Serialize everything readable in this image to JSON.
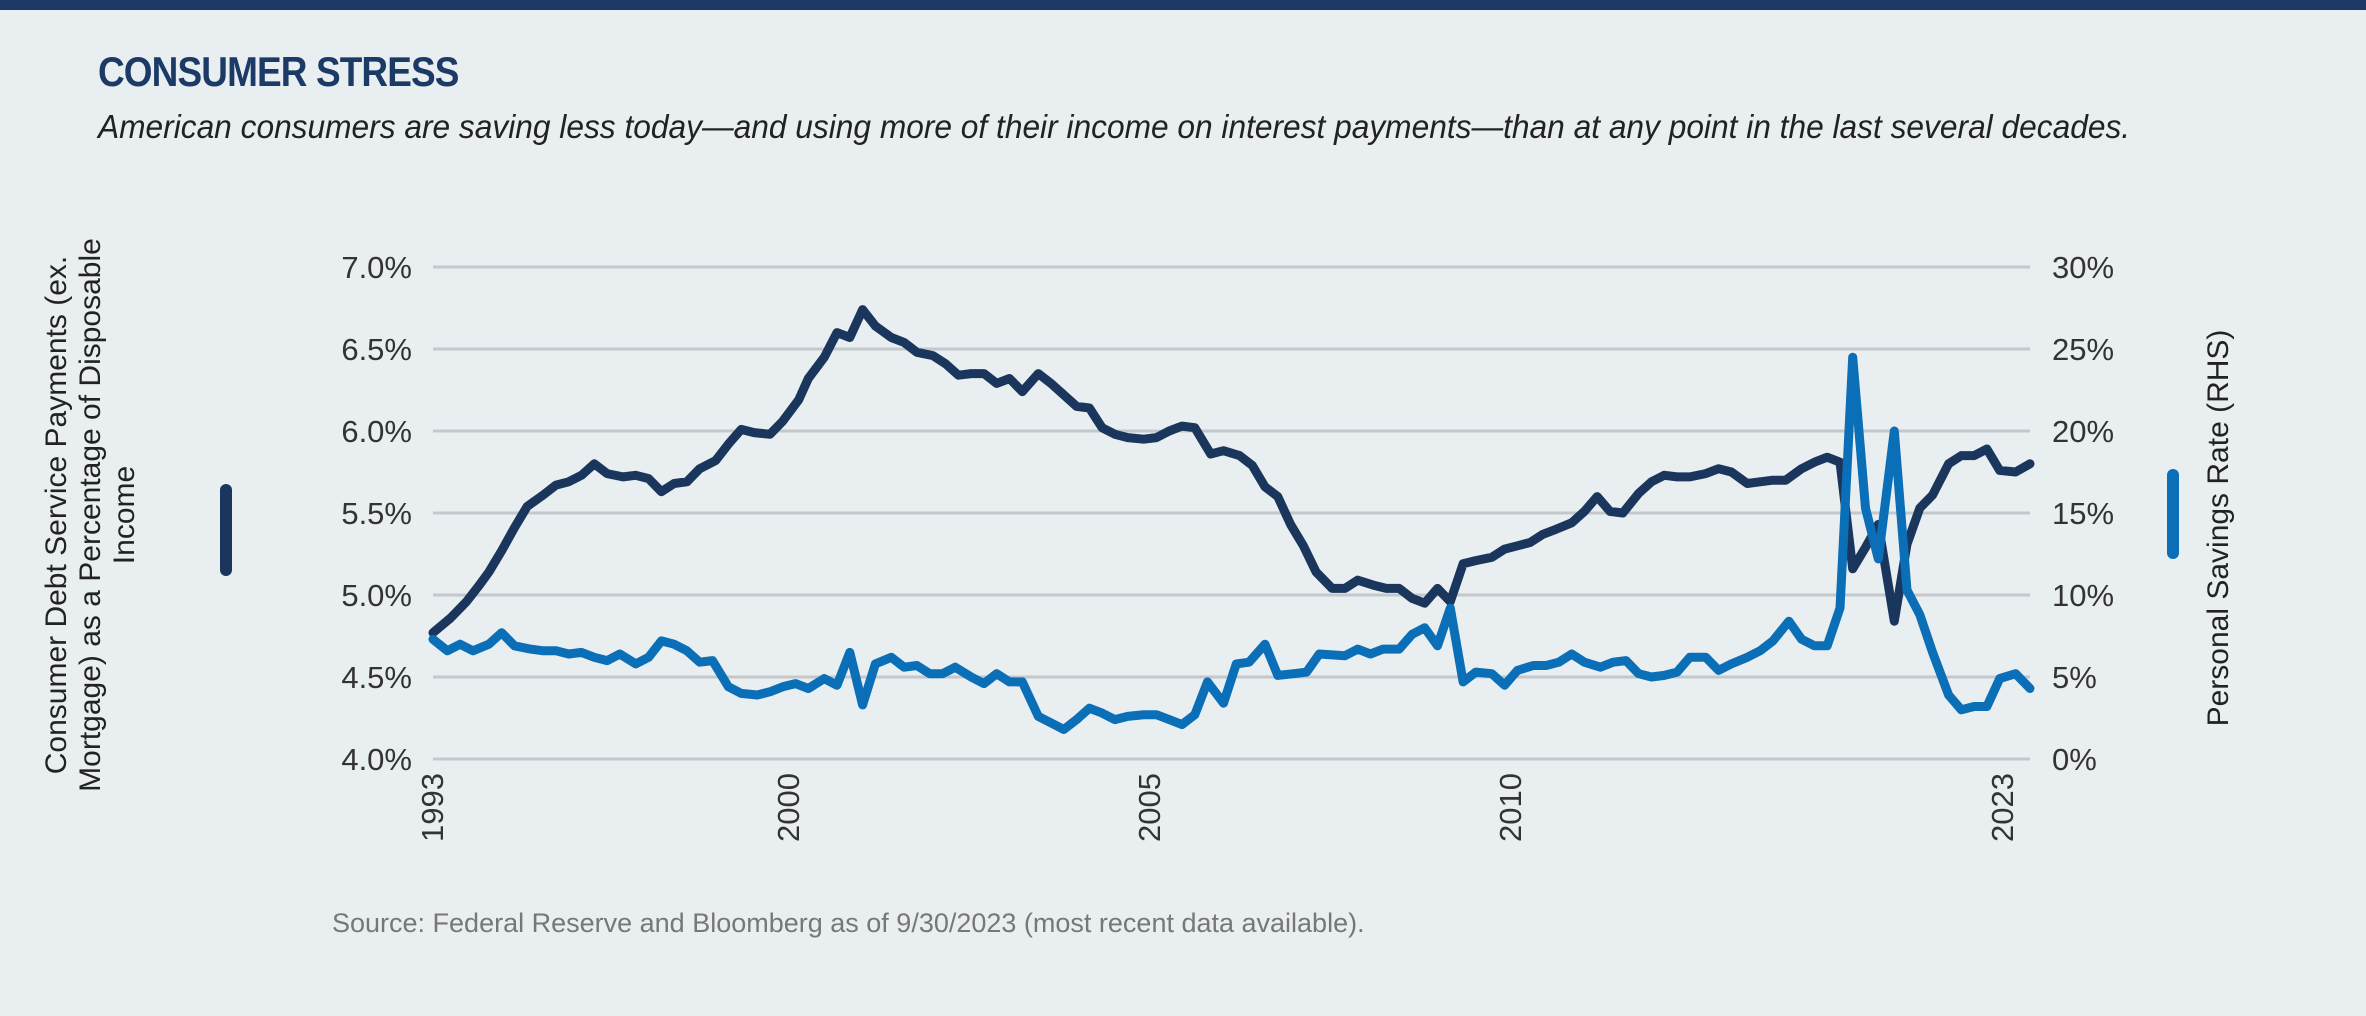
{
  "header": {
    "title": "CONSUMER STRESS",
    "subtitle": "American consumers are saving less today—and using more of their income on interest payments—than at any point in the last several decades."
  },
  "source": "Source: Federal Reserve and Bloomberg as of 9/30/2023 (most recent data available).",
  "chart_data": {
    "type": "line",
    "title": "CONSUMER STRESS",
    "x_unit": "period index (0 = start of 1993, 100 = latest 2023 observation)",
    "xlim": [
      0,
      100
    ],
    "x_ticks": [
      {
        "label": "1993",
        "x": 0
      },
      {
        "label": "2000",
        "x": 22.3
      },
      {
        "label": "2005",
        "x": 44.9
      },
      {
        "label": "2010",
        "x": 67.5
      },
      {
        "label": "2023",
        "x": 98.3
      }
    ],
    "y_left": {
      "label": "Consumer Debt Service Payments (ex. Mortgage) as a Percentage of Disposable Income",
      "ylim": [
        4.0,
        7.0
      ],
      "ticks": [
        "4.0%",
        "4.5%",
        "5.0%",
        "5.5%",
        "6.0%",
        "6.5%",
        "7.0%"
      ],
      "tick_values": [
        4.0,
        4.5,
        5.0,
        5.5,
        6.0,
        6.5,
        7.0
      ]
    },
    "y_right": {
      "label": "Personal Savings Rate (RHS)",
      "ylim": [
        0,
        30
      ],
      "ticks": [
        "0%",
        "5%",
        "10%",
        "15%",
        "20%",
        "25%",
        "30%"
      ],
      "tick_values": [
        0,
        5,
        10,
        15,
        20,
        25,
        30
      ]
    },
    "grid": true,
    "series": [
      {
        "name": "Consumer Debt Service Payments (ex. Mortgage) as a Percentage of Disposable Income",
        "axis": "left",
        "color": "#1b365d",
        "points": [
          [
            0,
            4.77
          ],
          [
            1.1,
            4.86
          ],
          [
            2.1,
            4.96
          ],
          [
            2.9,
            5.06
          ],
          [
            3.5,
            5.14
          ],
          [
            4.3,
            5.27
          ],
          [
            5.1,
            5.41
          ],
          [
            5.9,
            5.54
          ],
          [
            6.9,
            5.61
          ],
          [
            7.7,
            5.67
          ],
          [
            8.5,
            5.69
          ],
          [
            9.3,
            5.73
          ],
          [
            10.1,
            5.8
          ],
          [
            10.9,
            5.74
          ],
          [
            11.9,
            5.72
          ],
          [
            12.7,
            5.73
          ],
          [
            13.5,
            5.71
          ],
          [
            14.3,
            5.63
          ],
          [
            15.1,
            5.68
          ],
          [
            15.9,
            5.69
          ],
          [
            16.7,
            5.77
          ],
          [
            17.7,
            5.82
          ],
          [
            18.5,
            5.92
          ],
          [
            19.3,
            6.01
          ],
          [
            20.1,
            5.99
          ],
          [
            21.1,
            5.98
          ],
          [
            21.9,
            6.06
          ],
          [
            22.9,
            6.19
          ],
          [
            23.5,
            6.32
          ],
          [
            24.5,
            6.45
          ],
          [
            25.3,
            6.6
          ],
          [
            26.1,
            6.57
          ],
          [
            26.9,
            6.74
          ],
          [
            27.7,
            6.64
          ],
          [
            28.7,
            6.57
          ],
          [
            29.5,
            6.54
          ],
          [
            30.3,
            6.48
          ],
          [
            31.3,
            6.46
          ],
          [
            32.1,
            6.41
          ],
          [
            32.9,
            6.34
          ],
          [
            33.7,
            6.35
          ],
          [
            34.5,
            6.35
          ],
          [
            35.3,
            6.29
          ],
          [
            36.1,
            6.32
          ],
          [
            36.9,
            6.24
          ],
          [
            37.9,
            6.35
          ],
          [
            38.7,
            6.29
          ],
          [
            39.5,
            6.22
          ],
          [
            40.3,
            6.15
          ],
          [
            41.1,
            6.14
          ],
          [
            41.9,
            6.02
          ],
          [
            42.7,
            5.98
          ],
          [
            43.5,
            5.96
          ],
          [
            44.5,
            5.95
          ],
          [
            45.3,
            5.96
          ],
          [
            46.1,
            6.0
          ],
          [
            46.9,
            6.03
          ],
          [
            47.7,
            6.02
          ],
          [
            48.7,
            5.86
          ],
          [
            49.5,
            5.88
          ],
          [
            50.5,
            5.85
          ],
          [
            51.3,
            5.79
          ],
          [
            52.1,
            5.66
          ],
          [
            52.9,
            5.6
          ],
          [
            53.7,
            5.43
          ],
          [
            54.5,
            5.3
          ],
          [
            55.3,
            5.14
          ],
          [
            56.3,
            5.04
          ],
          [
            57.1,
            5.04
          ],
          [
            57.9,
            5.09
          ],
          [
            58.9,
            5.06
          ],
          [
            59.7,
            5.04
          ],
          [
            60.5,
            5.04
          ],
          [
            61.3,
            4.98
          ],
          [
            62.1,
            4.95
          ],
          [
            62.9,
            5.04
          ],
          [
            63.7,
            4.96
          ],
          [
            64.5,
            5.19
          ],
          [
            65.3,
            5.21
          ],
          [
            66.3,
            5.23
          ],
          [
            67.1,
            5.28
          ],
          [
            67.9,
            5.3
          ],
          [
            68.7,
            5.32
          ],
          [
            69.5,
            5.37
          ],
          [
            70.3,
            5.4
          ],
          [
            71.3,
            5.44
          ],
          [
            72.1,
            5.51
          ],
          [
            72.9,
            5.6
          ],
          [
            73.7,
            5.51
          ],
          [
            74.5,
            5.5
          ],
          [
            75.5,
            5.62
          ],
          [
            76.3,
            5.69
          ],
          [
            77.1,
            5.73
          ],
          [
            77.9,
            5.72
          ],
          [
            78.7,
            5.72
          ],
          [
            79.7,
            5.74
          ],
          [
            80.5,
            5.77
          ],
          [
            81.3,
            5.75
          ],
          [
            82.3,
            5.68
          ],
          [
            83.1,
            5.69
          ],
          [
            83.9,
            5.7
          ],
          [
            84.7,
            5.7
          ],
          [
            85.7,
            5.77
          ],
          [
            86.5,
            5.81
          ],
          [
            87.3,
            5.84
          ],
          [
            88.1,
            5.81
          ],
          [
            88.9,
            5.16
          ],
          [
            89.7,
            5.29
          ],
          [
            90.5,
            5.43
          ],
          [
            91.5,
            4.84
          ],
          [
            92.3,
            5.31
          ],
          [
            93.1,
            5.53
          ],
          [
            93.9,
            5.61
          ],
          [
            94.9,
            5.8
          ],
          [
            95.7,
            5.85
          ],
          [
            96.5,
            5.85
          ],
          [
            97.3,
            5.89
          ],
          [
            98.1,
            5.76
          ],
          [
            99.1,
            5.75
          ],
          [
            100,
            5.8
          ]
        ]
      },
      {
        "name": "Personal Savings Rate (RHS)",
        "axis": "right",
        "color": "#0a6fb7",
        "points": [
          [
            0,
            7.3
          ],
          [
            0.9,
            6.6
          ],
          [
            1.7,
            7.0
          ],
          [
            2.5,
            6.6
          ],
          [
            3.5,
            7.0
          ],
          [
            4.3,
            7.7
          ],
          [
            5.1,
            6.9
          ],
          [
            6.1,
            6.7
          ],
          [
            6.9,
            6.6
          ],
          [
            7.7,
            6.6
          ],
          [
            8.5,
            6.4
          ],
          [
            9.3,
            6.5
          ],
          [
            10.1,
            6.2
          ],
          [
            10.9,
            6.0
          ],
          [
            11.7,
            6.4
          ],
          [
            12.7,
            5.8
          ],
          [
            13.5,
            6.2
          ],
          [
            14.3,
            7.2
          ],
          [
            15.1,
            7.0
          ],
          [
            15.9,
            6.6
          ],
          [
            16.7,
            5.9
          ],
          [
            17.5,
            6.0
          ],
          [
            18.5,
            4.4
          ],
          [
            19.3,
            4.0
          ],
          [
            20.3,
            3.9
          ],
          [
            21.1,
            4.1
          ],
          [
            21.9,
            4.4
          ],
          [
            22.7,
            4.6
          ],
          [
            23.5,
            4.3
          ],
          [
            24.5,
            4.9
          ],
          [
            25.3,
            4.5
          ],
          [
            26.1,
            6.5
          ],
          [
            26.9,
            3.3
          ],
          [
            27.7,
            5.8
          ],
          [
            28.7,
            6.2
          ],
          [
            29.5,
            5.6
          ],
          [
            30.3,
            5.7
          ],
          [
            31.1,
            5.2
          ],
          [
            31.9,
            5.2
          ],
          [
            32.7,
            5.6
          ],
          [
            33.7,
            5.0
          ],
          [
            34.5,
            4.6
          ],
          [
            35.3,
            5.2
          ],
          [
            36.1,
            4.7
          ],
          [
            36.9,
            4.7
          ],
          [
            37.9,
            2.6
          ],
          [
            38.7,
            2.2
          ],
          [
            39.5,
            1.8
          ],
          [
            40.3,
            2.4
          ],
          [
            41.1,
            3.1
          ],
          [
            41.9,
            2.8
          ],
          [
            42.7,
            2.4
          ],
          [
            43.5,
            2.6
          ],
          [
            44.5,
            2.7
          ],
          [
            45.3,
            2.7
          ],
          [
            46.1,
            2.4
          ],
          [
            46.9,
            2.1
          ],
          [
            47.7,
            2.7
          ],
          [
            48.5,
            4.7
          ],
          [
            49.5,
            3.4
          ],
          [
            50.3,
            5.8
          ],
          [
            51.1,
            5.9
          ],
          [
            52.1,
            7.0
          ],
          [
            52.9,
            5.1
          ],
          [
            53.9,
            5.2
          ],
          [
            54.7,
            5.3
          ],
          [
            55.5,
            6.4
          ],
          [
            57.1,
            6.3
          ],
          [
            57.9,
            6.7
          ],
          [
            58.7,
            6.4
          ],
          [
            59.5,
            6.7
          ],
          [
            60.5,
            6.7
          ],
          [
            61.3,
            7.6
          ],
          [
            62.1,
            8.0
          ],
          [
            62.9,
            6.9
          ],
          [
            63.7,
            9.2
          ],
          [
            64.5,
            4.7
          ],
          [
            65.3,
            5.3
          ],
          [
            66.3,
            5.2
          ],
          [
            67.1,
            4.5
          ],
          [
            67.9,
            5.4
          ],
          [
            68.9,
            5.7
          ],
          [
            69.7,
            5.7
          ],
          [
            70.5,
            5.9
          ],
          [
            71.3,
            6.4
          ],
          [
            72.1,
            5.9
          ],
          [
            73.1,
            5.6
          ],
          [
            73.9,
            5.9
          ],
          [
            74.7,
            6.0
          ],
          [
            75.5,
            5.2
          ],
          [
            76.3,
            5.0
          ],
          [
            77.1,
            5.1
          ],
          [
            77.9,
            5.3
          ],
          [
            78.7,
            6.2
          ],
          [
            79.7,
            6.2
          ],
          [
            80.5,
            5.4
          ],
          [
            81.3,
            5.8
          ],
          [
            82.3,
            6.2
          ],
          [
            83.1,
            6.6
          ],
          [
            83.9,
            7.2
          ],
          [
            84.9,
            8.4
          ],
          [
            85.7,
            7.3
          ],
          [
            86.5,
            6.9
          ],
          [
            87.3,
            6.9
          ],
          [
            88.1,
            9.2
          ],
          [
            88.9,
            24.5
          ],
          [
            89.7,
            15.3
          ],
          [
            90.5,
            12.2
          ],
          [
            91.5,
            20.0
          ],
          [
            92.3,
            10.3
          ],
          [
            93.1,
            8.8
          ],
          [
            93.9,
            6.5
          ],
          [
            94.9,
            3.9
          ],
          [
            95.7,
            3.0
          ],
          [
            96.5,
            3.2
          ],
          [
            97.3,
            3.2
          ],
          [
            98.1,
            4.9
          ],
          [
            99.1,
            5.2
          ],
          [
            100,
            4.3
          ]
        ]
      }
    ]
  }
}
